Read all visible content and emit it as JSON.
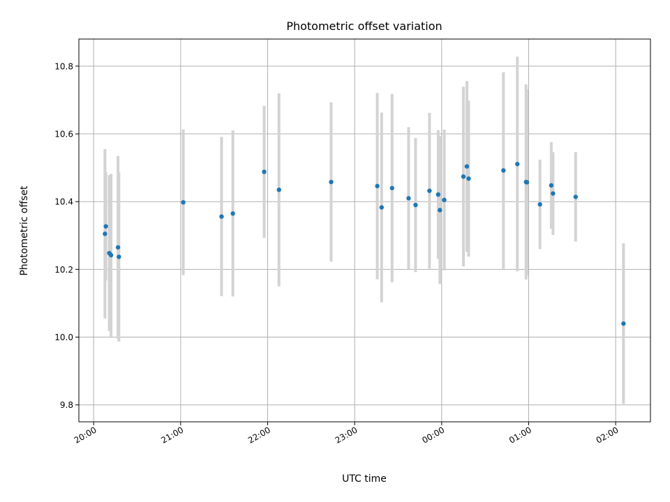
{
  "chart_data": {
    "type": "scatter",
    "title": "Photometric offset variation",
    "xlabel": "UTC time",
    "ylabel": "Photometric offset",
    "x_unit": "hours since 20:00 UTC",
    "xlim": [
      -0.17,
      6.4
    ],
    "ylim": [
      9.75,
      10.88
    ],
    "x_ticks": [
      {
        "value": 0,
        "label": "20:00"
      },
      {
        "value": 1,
        "label": "21:00"
      },
      {
        "value": 2,
        "label": "22:00"
      },
      {
        "value": 3,
        "label": "23:00"
      },
      {
        "value": 4,
        "label": "00:00"
      },
      {
        "value": 5,
        "label": "01:00"
      },
      {
        "value": 6,
        "label": "02:00"
      }
    ],
    "y_ticks": [
      {
        "value": 9.8,
        "label": "9.8"
      },
      {
        "value": 10.0,
        "label": "10.0"
      },
      {
        "value": 10.2,
        "label": "10.2"
      },
      {
        "value": 10.4,
        "label": "10.4"
      },
      {
        "value": 10.6,
        "label": "10.6"
      },
      {
        "value": 10.8,
        "label": "10.8"
      }
    ],
    "grid": true,
    "marker_color": "#1f77b4",
    "errorbar_color": "#d3d3d3",
    "points": [
      {
        "x": 0.13,
        "y": 10.305,
        "err": 0.25
      },
      {
        "x": 0.14,
        "y": 10.327,
        "err": 0.16
      },
      {
        "x": 0.18,
        "y": 10.248,
        "err": 0.23
      },
      {
        "x": 0.2,
        "y": 10.242,
        "err": 0.24
      },
      {
        "x": 0.28,
        "y": 10.265,
        "err": 0.27
      },
      {
        "x": 0.29,
        "y": 10.237,
        "err": 0.25
      },
      {
        "x": 1.03,
        "y": 10.398,
        "err": 0.215
      },
      {
        "x": 1.47,
        "y": 10.356,
        "err": 0.235
      },
      {
        "x": 1.6,
        "y": 10.365,
        "err": 0.245
      },
      {
        "x": 1.96,
        "y": 10.488,
        "err": 0.195
      },
      {
        "x": 2.13,
        "y": 10.435,
        "err": 0.285
      },
      {
        "x": 2.73,
        "y": 10.458,
        "err": 0.235
      },
      {
        "x": 3.26,
        "y": 10.446,
        "err": 0.275
      },
      {
        "x": 3.31,
        "y": 10.383,
        "err": 0.28
      },
      {
        "x": 3.43,
        "y": 10.44,
        "err": 0.278
      },
      {
        "x": 3.62,
        "y": 10.41,
        "err": 0.21
      },
      {
        "x": 3.7,
        "y": 10.39,
        "err": 0.198
      },
      {
        "x": 3.86,
        "y": 10.432,
        "err": 0.23
      },
      {
        "x": 3.96,
        "y": 10.421,
        "err": 0.19
      },
      {
        "x": 3.98,
        "y": 10.375,
        "err": 0.218
      },
      {
        "x": 4.03,
        "y": 10.405,
        "err": 0.208
      },
      {
        "x": 4.25,
        "y": 10.474,
        "err": 0.265
      },
      {
        "x": 4.29,
        "y": 10.504,
        "err": 0.252
      },
      {
        "x": 4.31,
        "y": 10.468,
        "err": 0.23
      },
      {
        "x": 4.71,
        "y": 10.492,
        "err": 0.29
      },
      {
        "x": 4.87,
        "y": 10.511,
        "err": 0.317
      },
      {
        "x": 4.97,
        "y": 10.458,
        "err": 0.288
      },
      {
        "x": 4.98,
        "y": 10.457,
        "err": 0.275
      },
      {
        "x": 5.13,
        "y": 10.392,
        "err": 0.132
      },
      {
        "x": 5.26,
        "y": 10.448,
        "err": 0.128
      },
      {
        "x": 5.28,
        "y": 10.424,
        "err": 0.122
      },
      {
        "x": 5.54,
        "y": 10.414,
        "err": 0.132
      },
      {
        "x": 6.09,
        "y": 10.04,
        "err": 0.237
      }
    ]
  }
}
